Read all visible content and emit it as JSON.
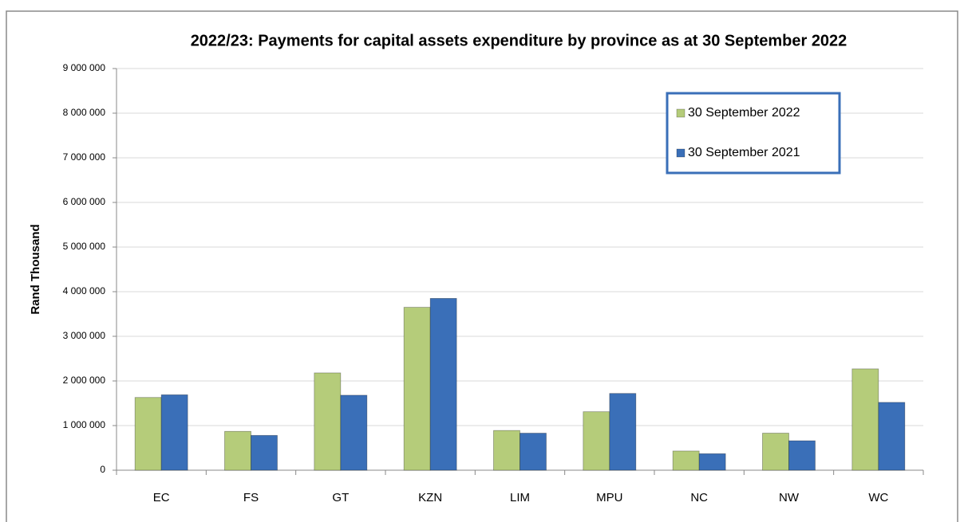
{
  "chart_data": {
    "type": "bar",
    "title": "2022/23: Payments for capital assets expenditure by province as at 30 September 2022",
    "y_label": "Rand Thousand",
    "categories": [
      "EC",
      "FS",
      "GT",
      "KZN",
      "LIM",
      "MPU",
      "NC",
      "NW",
      "WC"
    ],
    "series": [
      {
        "name": "30 September 2022",
        "color": "#b5cc7a",
        "values": [
          1630000,
          870000,
          2180000,
          3650000,
          890000,
          1310000,
          430000,
          830000,
          2270000
        ]
      },
      {
        "name": "30 September 2021",
        "color": "#3a6fb8",
        "values": [
          1690000,
          780000,
          1680000,
          3850000,
          830000,
          1720000,
          370000,
          660000,
          1520000
        ]
      }
    ],
    "ylim": [
      0,
      9000000
    ],
    "yticks": [
      {
        "value": 0,
        "label": "0"
      },
      {
        "value": 1000000,
        "label": "1 000 000"
      },
      {
        "value": 2000000,
        "label": "2 000 000"
      },
      {
        "value": 3000000,
        "label": "3 000 000"
      },
      {
        "value": 4000000,
        "label": "4 000 000"
      },
      {
        "value": 5000000,
        "label": "5 000 000"
      },
      {
        "value": 6000000,
        "label": "6 000 000"
      },
      {
        "value": 7000000,
        "label": "7 000 000"
      },
      {
        "value": 8000000,
        "label": "8 000 000"
      },
      {
        "value": 9000000,
        "label": "9 000 000"
      }
    ],
    "grid": true,
    "legend": "top-right"
  }
}
